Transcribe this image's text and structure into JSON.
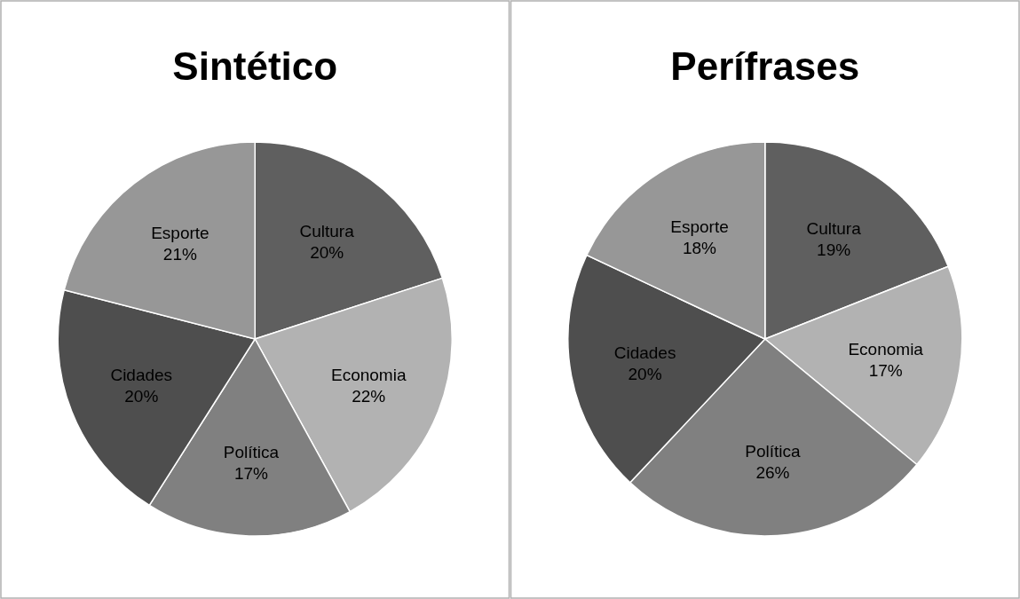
{
  "chart_data": [
    {
      "type": "pie",
      "title": "Sintético",
      "categories": [
        "Cultura",
        "Economia",
        "Política",
        "Cidades",
        "Esporte"
      ],
      "values": [
        20,
        22,
        17,
        20,
        21
      ],
      "colors": [
        "#5f5f5f",
        "#b2b2b2",
        "#808080",
        "#4e4e4e",
        "#979797"
      ],
      "value_labels": [
        "20%",
        "22%",
        "17%",
        "20%",
        "21%"
      ]
    },
    {
      "type": "pie",
      "title": "Perífrases",
      "categories": [
        "Cultura",
        "Economia",
        "Política",
        "Cidades",
        "Esporte"
      ],
      "values": [
        19,
        17,
        26,
        20,
        18
      ],
      "colors": [
        "#5f5f5f",
        "#b2b2b2",
        "#808080",
        "#4e4e4e",
        "#979797"
      ],
      "value_labels": [
        "19%",
        "17%",
        "26%",
        "20%",
        "18%"
      ]
    }
  ]
}
